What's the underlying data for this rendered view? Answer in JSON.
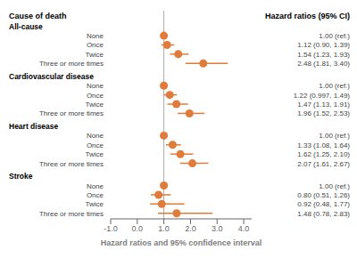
{
  "chart_data": {
    "type": "forest",
    "title_left": "Cause of death",
    "title_right": "Hazard ratios (95% CI)",
    "xlabel": "Hazard ratios and 95% confidence interval",
    "xlim": [
      -1.0,
      4.3
    ],
    "xticks": [
      {
        "value": -1.0,
        "label": "-1.0"
      },
      {
        "value": 0.0,
        "label": "0.0"
      },
      {
        "value": 1.0,
        "label": "1.0"
      },
      {
        "value": 2.0,
        "label": "2.0"
      },
      {
        "value": 3.0,
        "label": "3.0"
      },
      {
        "value": 4.0,
        "label": "4.0"
      }
    ],
    "reference_line": 1.0,
    "color": "#E07B39",
    "groups": [
      {
        "name": "All-cause",
        "rows": [
          {
            "label": "None",
            "hr": 1.0,
            "lo": 1.0,
            "hi": 1.0,
            "text": "1.00 (ref.)"
          },
          {
            "label": "Once",
            "hr": 1.12,
            "lo": 0.9,
            "hi": 1.39,
            "text": "1.12 (0.90, 1.39)"
          },
          {
            "label": "Twice",
            "hr": 1.54,
            "lo": 1.23,
            "hi": 1.93,
            "text": "1.54 (1.23, 1.93)"
          },
          {
            "label": "Three or more times",
            "hr": 2.48,
            "lo": 1.81,
            "hi": 3.4,
            "text": "2.48 (1.81, 3.40)"
          }
        ]
      },
      {
        "name": "Cardiovascular disease",
        "rows": [
          {
            "label": "None",
            "hr": 1.0,
            "lo": 1.0,
            "hi": 1.0,
            "text": "1.00 (ref.)"
          },
          {
            "label": "Once",
            "hr": 1.22,
            "lo": 0.997,
            "hi": 1.49,
            "text": "1.22 (0.997, 1.49)"
          },
          {
            "label": "Twice",
            "hr": 1.47,
            "lo": 1.13,
            "hi": 1.91,
            "text": "1.47 (1.13, 1.91)"
          },
          {
            "label": "Three or more times",
            "hr": 1.96,
            "lo": 1.52,
            "hi": 2.53,
            "text": "1.96 (1.52, 2.53)"
          }
        ]
      },
      {
        "name": "Heart disease",
        "rows": [
          {
            "label": "None",
            "hr": 1.0,
            "lo": 1.0,
            "hi": 1.0,
            "text": "1.00 (ref.)"
          },
          {
            "label": "Once",
            "hr": 1.33,
            "lo": 1.08,
            "hi": 1.64,
            "text": "1.33 (1.08, 1.64)"
          },
          {
            "label": "Twice",
            "hr": 1.62,
            "lo": 1.25,
            "hi": 2.1,
            "text": "1.62 (1.25, 2.10)"
          },
          {
            "label": "Three or more times",
            "hr": 2.07,
            "lo": 1.61,
            "hi": 2.67,
            "text": "2.07 (1.61, 2.67)"
          }
        ]
      },
      {
        "name": "Stroke",
        "rows": [
          {
            "label": "None",
            "hr": 1.0,
            "lo": 1.0,
            "hi": 1.0,
            "text": "1.00 (ref.)"
          },
          {
            "label": "Once",
            "hr": 0.8,
            "lo": 0.51,
            "hi": 1.26,
            "text": "0.80 (0.51, 1.26)"
          },
          {
            "label": "Twice",
            "hr": 0.92,
            "lo": 0.48,
            "hi": 1.77,
            "text": "0.92 (0.48, 1.77)"
          },
          {
            "label": "Three or more times",
            "hr": 1.48,
            "lo": 0.78,
            "hi": 2.83,
            "text": "1.48 (0.78, 2.83)"
          }
        ]
      }
    ]
  }
}
